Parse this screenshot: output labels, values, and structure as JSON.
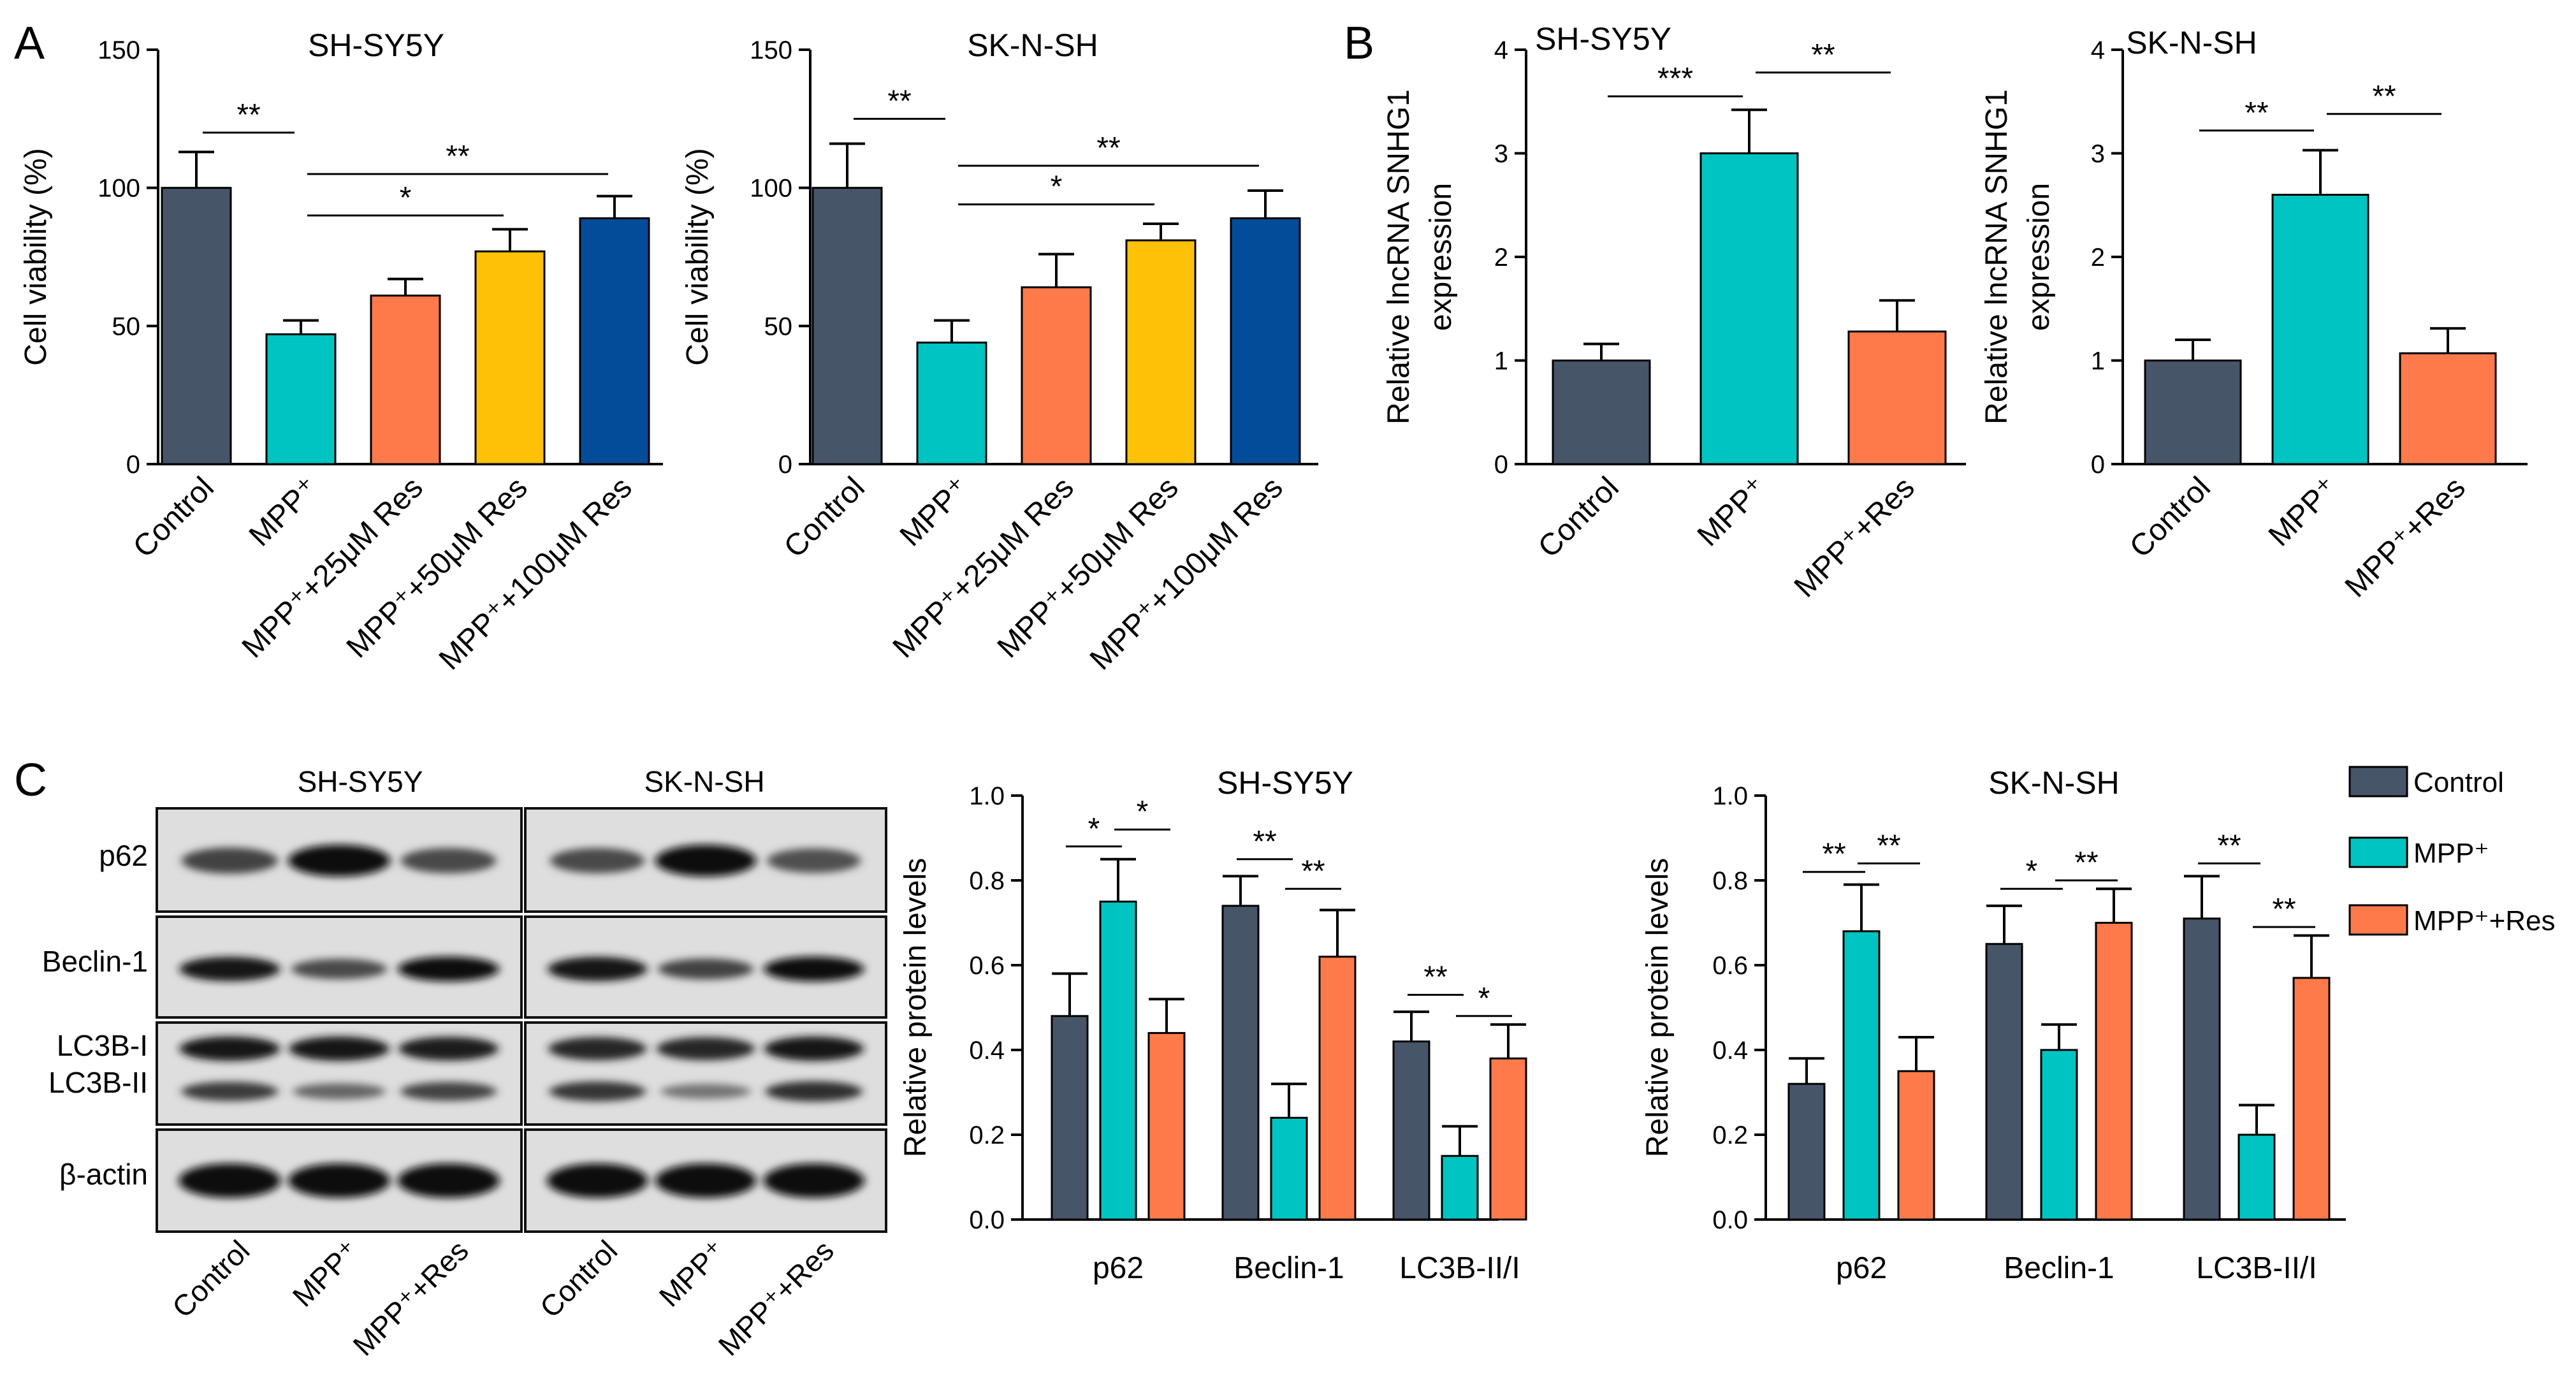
{
  "colors": {
    "control": "#475569",
    "mpp": "#00c4c1",
    "res": "#ff7a4a",
    "res50": "#ffc107",
    "res100": "#034c99"
  },
  "panel_letters": [
    "A",
    "B",
    "C"
  ],
  "chart_data": [
    {
      "id": "A1",
      "type": "bar",
      "panel": "A",
      "title": "SH-SY5Y",
      "ylabel": "Cell viability (%)",
      "ylim": [
        0,
        150
      ],
      "yticks": [
        "0",
        "50",
        "100",
        "150"
      ],
      "categories": [
        "Control",
        "MPP⁺",
        "MPP⁺+25μM Res",
        "MPP⁺+50μM Res",
        "MPP⁺+100μM Res"
      ],
      "values": [
        100,
        47,
        61,
        77,
        89
      ],
      "errors": [
        13,
        5,
        6,
        8,
        8
      ],
      "colors": [
        "#475569",
        "#00c4c1",
        "#ff7a4a",
        "#ffc107",
        "#034c99"
      ],
      "significance": [
        {
          "from": 0,
          "to": 1,
          "label": "**",
          "y": 120
        },
        {
          "from": 1,
          "to": 4,
          "label": "**",
          "y": 105
        },
        {
          "from": 1,
          "to": 3,
          "label": "*",
          "y": 90
        }
      ]
    },
    {
      "id": "A2",
      "type": "bar",
      "panel": "A",
      "title": "SK-N-SH",
      "ylabel": "Cell viability (%)",
      "ylim": [
        0,
        150
      ],
      "yticks": [
        "0",
        "50",
        "100",
        "150"
      ],
      "categories": [
        "Control",
        "MPP⁺",
        "MPP⁺+25μM Res",
        "MPP⁺+50μM Res",
        "MPP⁺+100μM Res"
      ],
      "values": [
        100,
        44,
        64,
        81,
        89
      ],
      "errors": [
        16,
        8,
        12,
        6,
        10
      ],
      "colors": [
        "#475569",
        "#00c4c1",
        "#ff7a4a",
        "#ffc107",
        "#034c99"
      ],
      "significance": [
        {
          "from": 0,
          "to": 1,
          "label": "**",
          "y": 125
        },
        {
          "from": 1,
          "to": 4,
          "label": "**",
          "y": 108
        },
        {
          "from": 1,
          "to": 3,
          "label": "*",
          "y": 94
        }
      ]
    },
    {
      "id": "B1",
      "type": "bar",
      "panel": "B",
      "title": "SH-SY5Y",
      "ylabel": "Relative lncRNA SNHG1 expression",
      "ylabel_lines": [
        "Relative lncRNA SNHG1",
        "expression"
      ],
      "ylim": [
        0,
        4
      ],
      "yticks": [
        "0",
        "1",
        "2",
        "3",
        "4"
      ],
      "categories": [
        "Control",
        "MPP⁺",
        "MPP⁺+Res"
      ],
      "values": [
        1.0,
        3.0,
        1.28
      ],
      "errors": [
        0.16,
        0.42,
        0.3
      ],
      "colors": [
        "#475569",
        "#00c4c1",
        "#ff7a4a"
      ],
      "significance": [
        {
          "from": 0,
          "to": 1,
          "label": "***",
          "y": 3.55
        },
        {
          "from": 1,
          "to": 2,
          "label": "**",
          "y": 3.78
        }
      ]
    },
    {
      "id": "B2",
      "type": "bar",
      "panel": "B",
      "title": "SK-N-SH",
      "ylabel": "Relative lncRNA SNHG1 expression",
      "ylabel_lines": [
        "Relative lncRNA SNHG1",
        "expression"
      ],
      "ylim": [
        0,
        4
      ],
      "yticks": [
        "0",
        "1",
        "2",
        "3",
        "4"
      ],
      "categories": [
        "Control",
        "MPP⁺",
        "MPP⁺+Res"
      ],
      "values": [
        1.0,
        2.6,
        1.07
      ],
      "errors": [
        0.2,
        0.43,
        0.24
      ],
      "colors": [
        "#475569",
        "#00c4c1",
        "#ff7a4a"
      ],
      "significance": [
        {
          "from": 0,
          "to": 1,
          "label": "**",
          "y": 3.22
        },
        {
          "from": 1,
          "to": 2,
          "label": "**",
          "y": 3.38
        }
      ]
    },
    {
      "id": "C1",
      "type": "bar",
      "panel": "C",
      "title": "SH-SY5Y",
      "ylabel": "Relative protein levels",
      "ylim": [
        0,
        1.0
      ],
      "yticks": [
        "0.0",
        "0.2",
        "0.4",
        "0.6",
        "0.8",
        "1.0"
      ],
      "categories": [
        "p62",
        "Beclin-1",
        "LC3B-II/I"
      ],
      "series": [
        {
          "name": "Control",
          "color": "#475569",
          "values": [
            0.48,
            0.74,
            0.42
          ],
          "errors": [
            0.1,
            0.07,
            0.07
          ]
        },
        {
          "name": "MPP⁺",
          "color": "#00c4c1",
          "values": [
            0.75,
            0.24,
            0.15
          ],
          "errors": [
            0.1,
            0.08,
            0.07
          ]
        },
        {
          "name": "MPP⁺+Res",
          "color": "#ff7a4a",
          "values": [
            0.44,
            0.62,
            0.38
          ],
          "errors": [
            0.08,
            0.11,
            0.08
          ]
        }
      ],
      "significance": [
        {
          "group": 0,
          "from": 0,
          "to": 1,
          "label": "*",
          "y": 0.88
        },
        {
          "group": 0,
          "from": 1,
          "to": 2,
          "label": "*",
          "y": 0.92
        },
        {
          "group": 1,
          "from": 0,
          "to": 1,
          "label": "**",
          "y": 0.85
        },
        {
          "group": 1,
          "from": 1,
          "to": 2,
          "label": "**",
          "y": 0.78
        },
        {
          "group": 2,
          "from": 0,
          "to": 1,
          "label": "**",
          "y": 0.53
        },
        {
          "group": 2,
          "from": 1,
          "to": 2,
          "label": "*",
          "y": 0.48
        }
      ]
    },
    {
      "id": "C2",
      "type": "bar",
      "panel": "C",
      "title": "SK-N-SH",
      "ylabel": "Relative protein levels",
      "ylim": [
        0,
        1.0
      ],
      "yticks": [
        "0.0",
        "0.2",
        "0.4",
        "0.6",
        "0.8",
        "1.0"
      ],
      "categories": [
        "p62",
        "Beclin-1",
        "LC3B-II/I"
      ],
      "series": [
        {
          "name": "Control",
          "color": "#475569",
          "values": [
            0.32,
            0.65,
            0.71
          ],
          "errors": [
            0.06,
            0.09,
            0.1
          ]
        },
        {
          "name": "MPP⁺",
          "color": "#00c4c1",
          "values": [
            0.68,
            0.4,
            0.2
          ],
          "errors": [
            0.11,
            0.06,
            0.07
          ]
        },
        {
          "name": "MPP⁺+Res",
          "color": "#ff7a4a",
          "values": [
            0.35,
            0.7,
            0.57
          ],
          "errors": [
            0.08,
            0.08,
            0.1
          ]
        }
      ],
      "significance": [
        {
          "group": 0,
          "from": 0,
          "to": 1,
          "label": "**",
          "y": 0.82
        },
        {
          "group": 0,
          "from": 1,
          "to": 2,
          "label": "**",
          "y": 0.84
        },
        {
          "group": 1,
          "from": 0,
          "to": 1,
          "label": "*",
          "y": 0.78
        },
        {
          "group": 1,
          "from": 1,
          "to": 2,
          "label": "**",
          "y": 0.8
        },
        {
          "group": 2,
          "from": 0,
          "to": 1,
          "label": "**",
          "y": 0.84
        },
        {
          "group": 2,
          "from": 1,
          "to": 2,
          "label": "**",
          "y": 0.69
        }
      ]
    }
  ],
  "legend": [
    "Control",
    "MPP⁺",
    "MPP⁺+Res"
  ],
  "western_blot": {
    "cell_lines": [
      "SH-SY5Y",
      "SK-N-SH"
    ],
    "rows": [
      "p62",
      "Beclin-1",
      "LC3B-I",
      "LC3B-II",
      "β-actin"
    ],
    "lanes": [
      "Control",
      "MPP⁺",
      "MPP⁺+Res"
    ],
    "band_intensity": {
      "SH-SY5Y": {
        "p62": [
          0.6,
          1.0,
          0.55
        ],
        "Beclin-1": [
          0.9,
          0.55,
          0.95
        ],
        "LC3B-I": [
          0.9,
          0.9,
          0.85
        ],
        "LC3B-II": [
          0.65,
          0.35,
          0.6
        ],
        "β-actin": [
          1.0,
          1.0,
          1.0
        ]
      },
      "SK-N-SH": {
        "p62": [
          0.55,
          1.0,
          0.5
        ],
        "Beclin-1": [
          0.9,
          0.6,
          0.95
        ],
        "LC3B-I": [
          0.8,
          0.8,
          0.9
        ],
        "LC3B-II": [
          0.7,
          0.25,
          0.75
        ],
        "β-actin": [
          1.0,
          1.0,
          1.0
        ]
      }
    }
  }
}
